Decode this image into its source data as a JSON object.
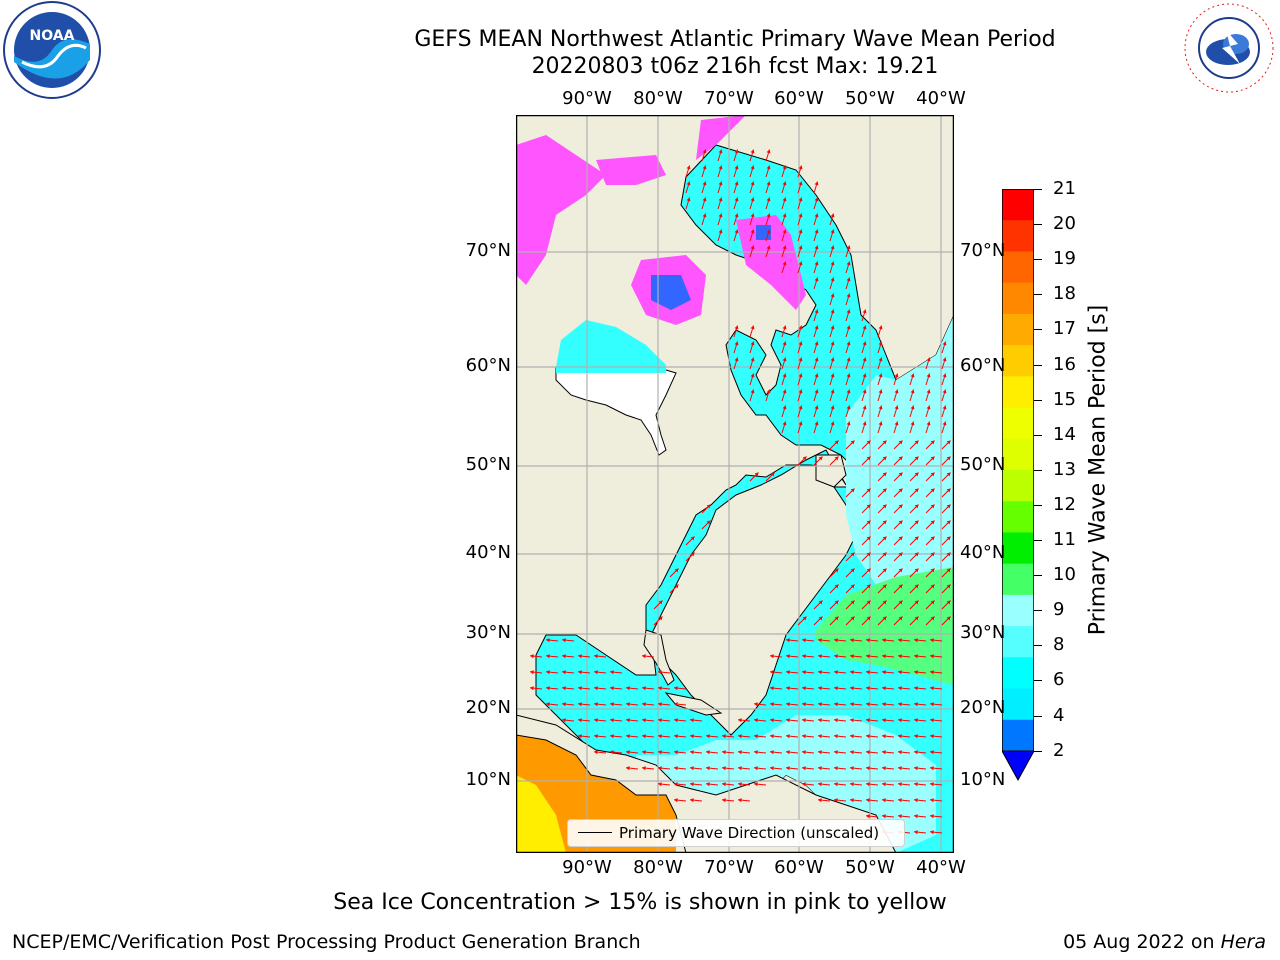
{
  "title": {
    "line1": "GEFS MEAN Northwest Atlantic Primary Wave Mean Period",
    "line2": "20220803 t06z 216h fcst   Max: 19.21"
  },
  "logos": {
    "left": {
      "text": "NOAA",
      "icon": "noaa-logo-icon"
    },
    "right": {
      "text": "NATIONAL WEATHER SERVICE",
      "icon": "nws-logo-icon"
    }
  },
  "map": {
    "lon_labels": [
      "90°W",
      "80°W",
      "70°W",
      "60°W",
      "50°W",
      "40°W"
    ],
    "lat_labels": [
      "70°N",
      "60°N",
      "50°N",
      "40°N",
      "30°N",
      "20°N",
      "10°N"
    ],
    "legend": "Primary Wave Direction (unscaled)",
    "colors": {
      "land": "#efeddc",
      "ocean_main": "#33ffff",
      "ocean_light": "#99ffff",
      "ocean_green": "#55ff80",
      "warm": "#ff9900",
      "ice_pink": "#ff55ff",
      "ice_blue": "#3366ff",
      "arrow": "#ff0000"
    }
  },
  "colorbar": {
    "label": "Primary Wave Mean Period [s]",
    "ticks": [
      "21",
      "20",
      "19",
      "18",
      "17",
      "16",
      "15",
      "14",
      "13",
      "12",
      "11",
      "10",
      "9",
      "8",
      "6",
      "4",
      "2"
    ],
    "colors": [
      "#ff0000",
      "#ff3300",
      "#ff6600",
      "#ff8800",
      "#ffaa00",
      "#ffcc00",
      "#ffee00",
      "#eeff00",
      "#ddff00",
      "#bbff00",
      "#66ff00",
      "#00ee00",
      "#44ff66",
      "#99ffff",
      "#55ffff",
      "#00ffff",
      "#00eeff",
      "#0077ff",
      "#0000ff"
    ]
  },
  "notes": {
    "ice": "Sea Ice Concentration > 15% is shown in pink to yellow",
    "footer_left": "NCEP/EMC/Verification Post Processing Product Generation Branch",
    "footer_date": "05 Aug 2022 on",
    "footer_host": "Hera"
  }
}
